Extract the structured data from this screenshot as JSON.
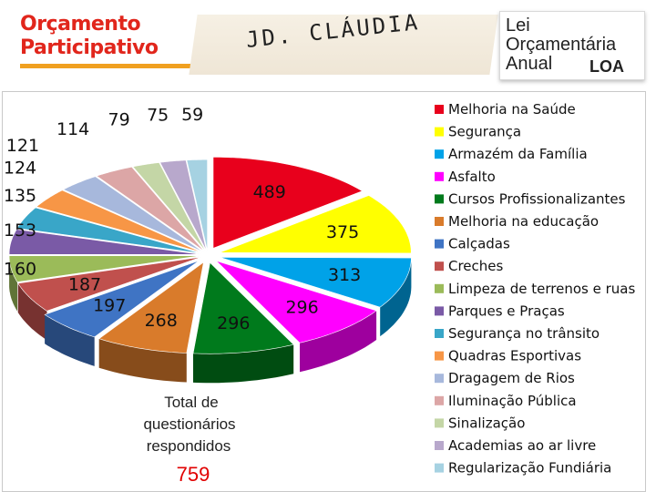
{
  "header": {
    "logo_line1": "Orçamento",
    "logo_line2": "Participativo",
    "title": "JD. CLÁUDIA",
    "loa_line1": "Lei",
    "loa_line2": "Orçamentária",
    "loa_line3": "Anual",
    "loa_abbr": "LOA"
  },
  "note": {
    "line1": "Total de",
    "line2": "questionários",
    "line3": "respondidos",
    "total": "759"
  },
  "chart_data": {
    "type": "pie",
    "title": "",
    "categories": [
      "Melhoria na Saúde",
      "Segurança",
      "Armazém da Família",
      "Asfalto",
      "Cursos Profissionalizantes",
      "Melhoria na educação",
      "Calçadas",
      "Creches",
      "Limpeza de terrenos e ruas",
      "Parques e Praças",
      "Segurança no trânsito",
      "Quadras Esportivas",
      "Dragagem de Rios",
      "Iluminação Pública",
      "Sinalização",
      "Academias ao ar livre",
      "Regularização Fundiária"
    ],
    "values": [
      489,
      375,
      313,
      296,
      296,
      268,
      197,
      187,
      160,
      153,
      135,
      124,
      121,
      114,
      79,
      75,
      59
    ],
    "colors": [
      "#e8001c",
      "#ffff00",
      "#00a2e8",
      "#ff00ff",
      "#007a1c",
      "#d97b2b",
      "#3f74c4",
      "#c0504d",
      "#9bbb59",
      "#7a5aa6",
      "#39a6c8",
      "#f79646",
      "#a7b8dc",
      "#dca6a6",
      "#c4d6a6",
      "#b8a8cc",
      "#a6d2e2"
    ],
    "legend": "right"
  }
}
